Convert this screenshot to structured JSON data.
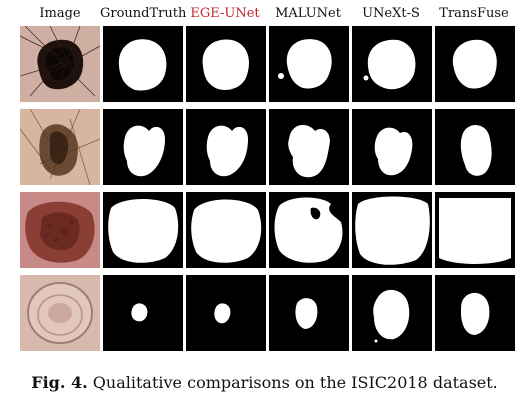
{
  "figure": {
    "columns": [
      {
        "label": "Image",
        "color": "#111111"
      },
      {
        "label": "GroundTruth",
        "color": "#111111"
      },
      {
        "label": "EGE-UNet",
        "color": "#c0262d"
      },
      {
        "label": "MALUNet",
        "color": "#111111"
      },
      {
        "label": "UNeXt-S",
        "color": "#111111"
      },
      {
        "label": "TransFuse",
        "color": "#111111"
      }
    ],
    "caption": {
      "label": "Fig. 4.",
      "text": "Qualitative comparisons on the ISIC2018 dataset."
    }
  },
  "colors": {
    "mask_background": "#000000",
    "mask_foreground": "#ffffff",
    "highlight": "#c0262d"
  }
}
